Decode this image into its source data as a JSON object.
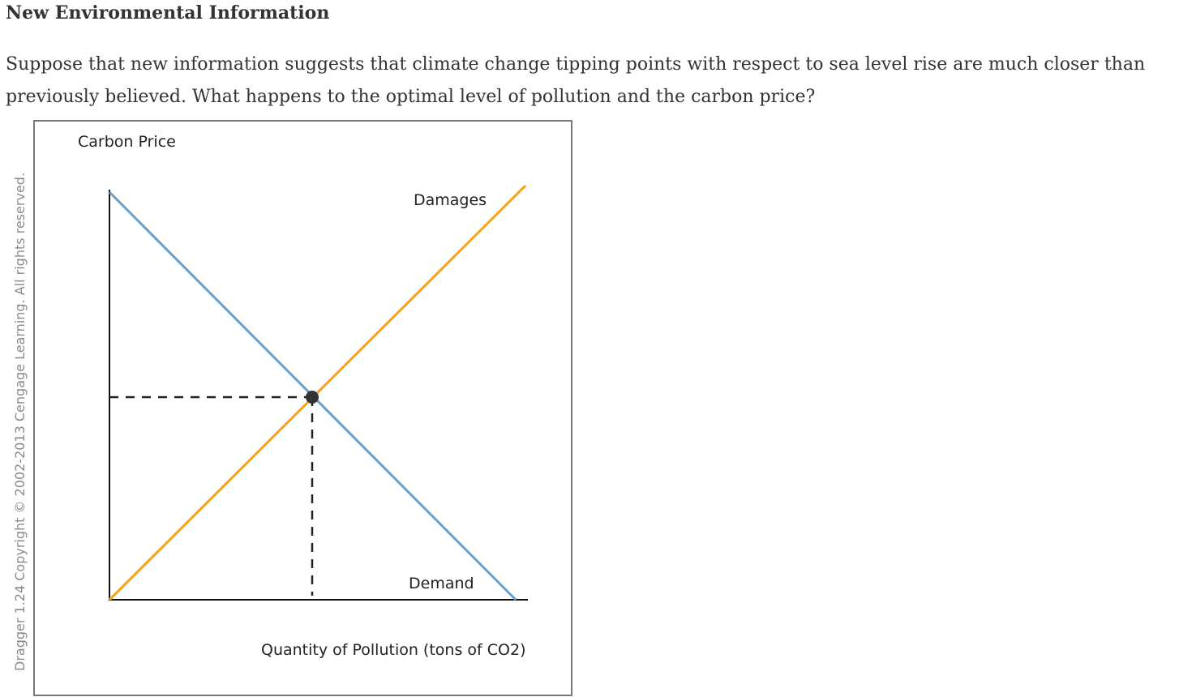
{
  "page": {
    "title": "New Environmental Information",
    "question": "Suppose that new information suggests that climate change tipping points with respect to sea level rise are much closer than previously believed. What happens to the optimal level of pollution and the carbon price?",
    "copyright": "Dragger 1.24 Copyright © 2002-2013 Cengage Learning. All rights reserved."
  },
  "graph": {
    "y_axis_label": "Carbon Price",
    "x_axis_label": "Quantity of Pollution (tons of CO2)",
    "curves": [
      {
        "name": "Damages",
        "color": "#f5a31a"
      },
      {
        "name": "Demand",
        "color": "#6b9fc7"
      }
    ],
    "equilibrium_marker_color": "#333333"
  }
}
